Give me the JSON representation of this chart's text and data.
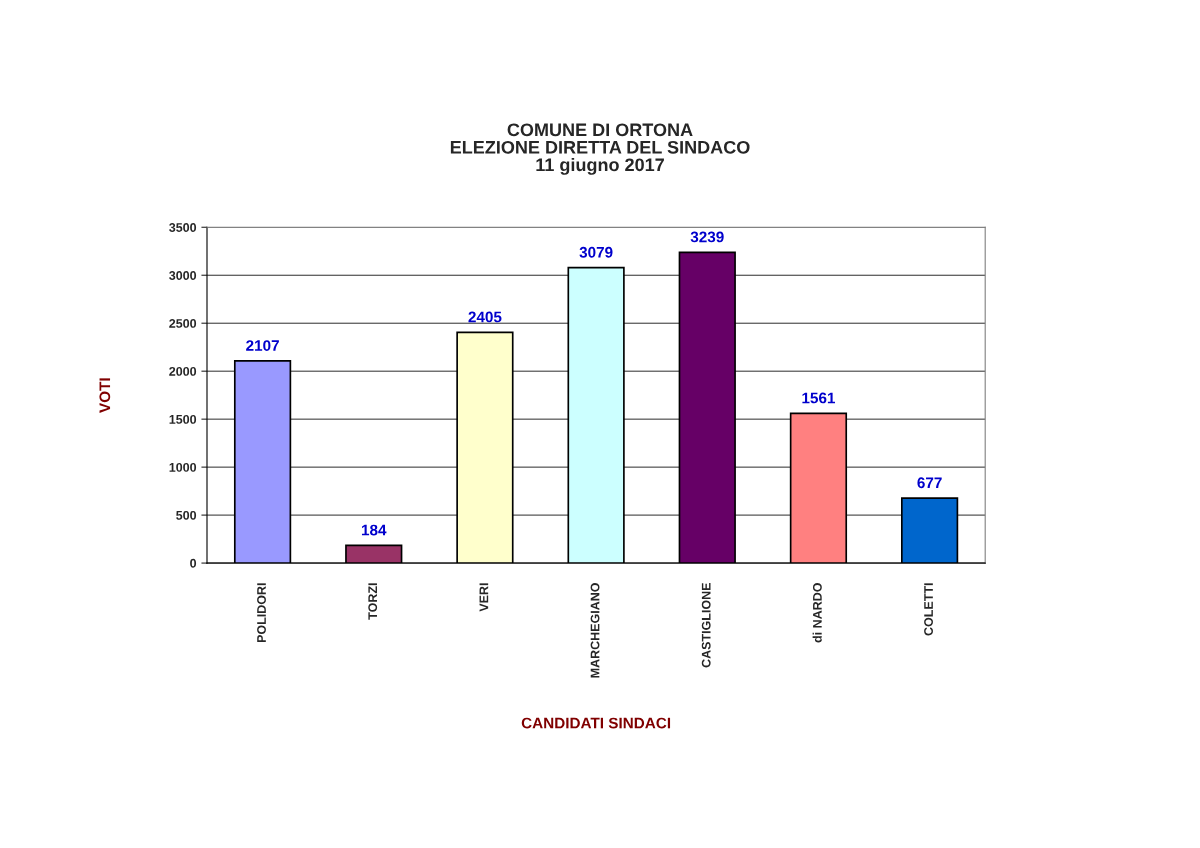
{
  "chart_data": {
    "type": "bar",
    "title": "COMUNE DI ORTONA\nELEZIONE DIRETTA DEL SINDACO\n11 giugno 2017",
    "xlabel": "CANDIDATI SINDACI",
    "ylabel": "VOTI",
    "categories": [
      "POLIDORI",
      "TORZI",
      "VERI",
      "MARCHEGIANO",
      "CASTIGLIONE",
      "di NARDO",
      "COLETTI"
    ],
    "values": [
      2107,
      184,
      2405,
      3079,
      3239,
      1561,
      677
    ],
    "colors": [
      "#9999ff",
      "#993366",
      "#ffffcc",
      "#ccffff",
      "#660066",
      "#ff8080",
      "#0066cc"
    ],
    "ylim": [
      0,
      3500
    ],
    "yticks": [
      0,
      500,
      1000,
      1500,
      2000,
      2500,
      3000,
      3500
    ],
    "grid": "y",
    "data_labels": true
  }
}
